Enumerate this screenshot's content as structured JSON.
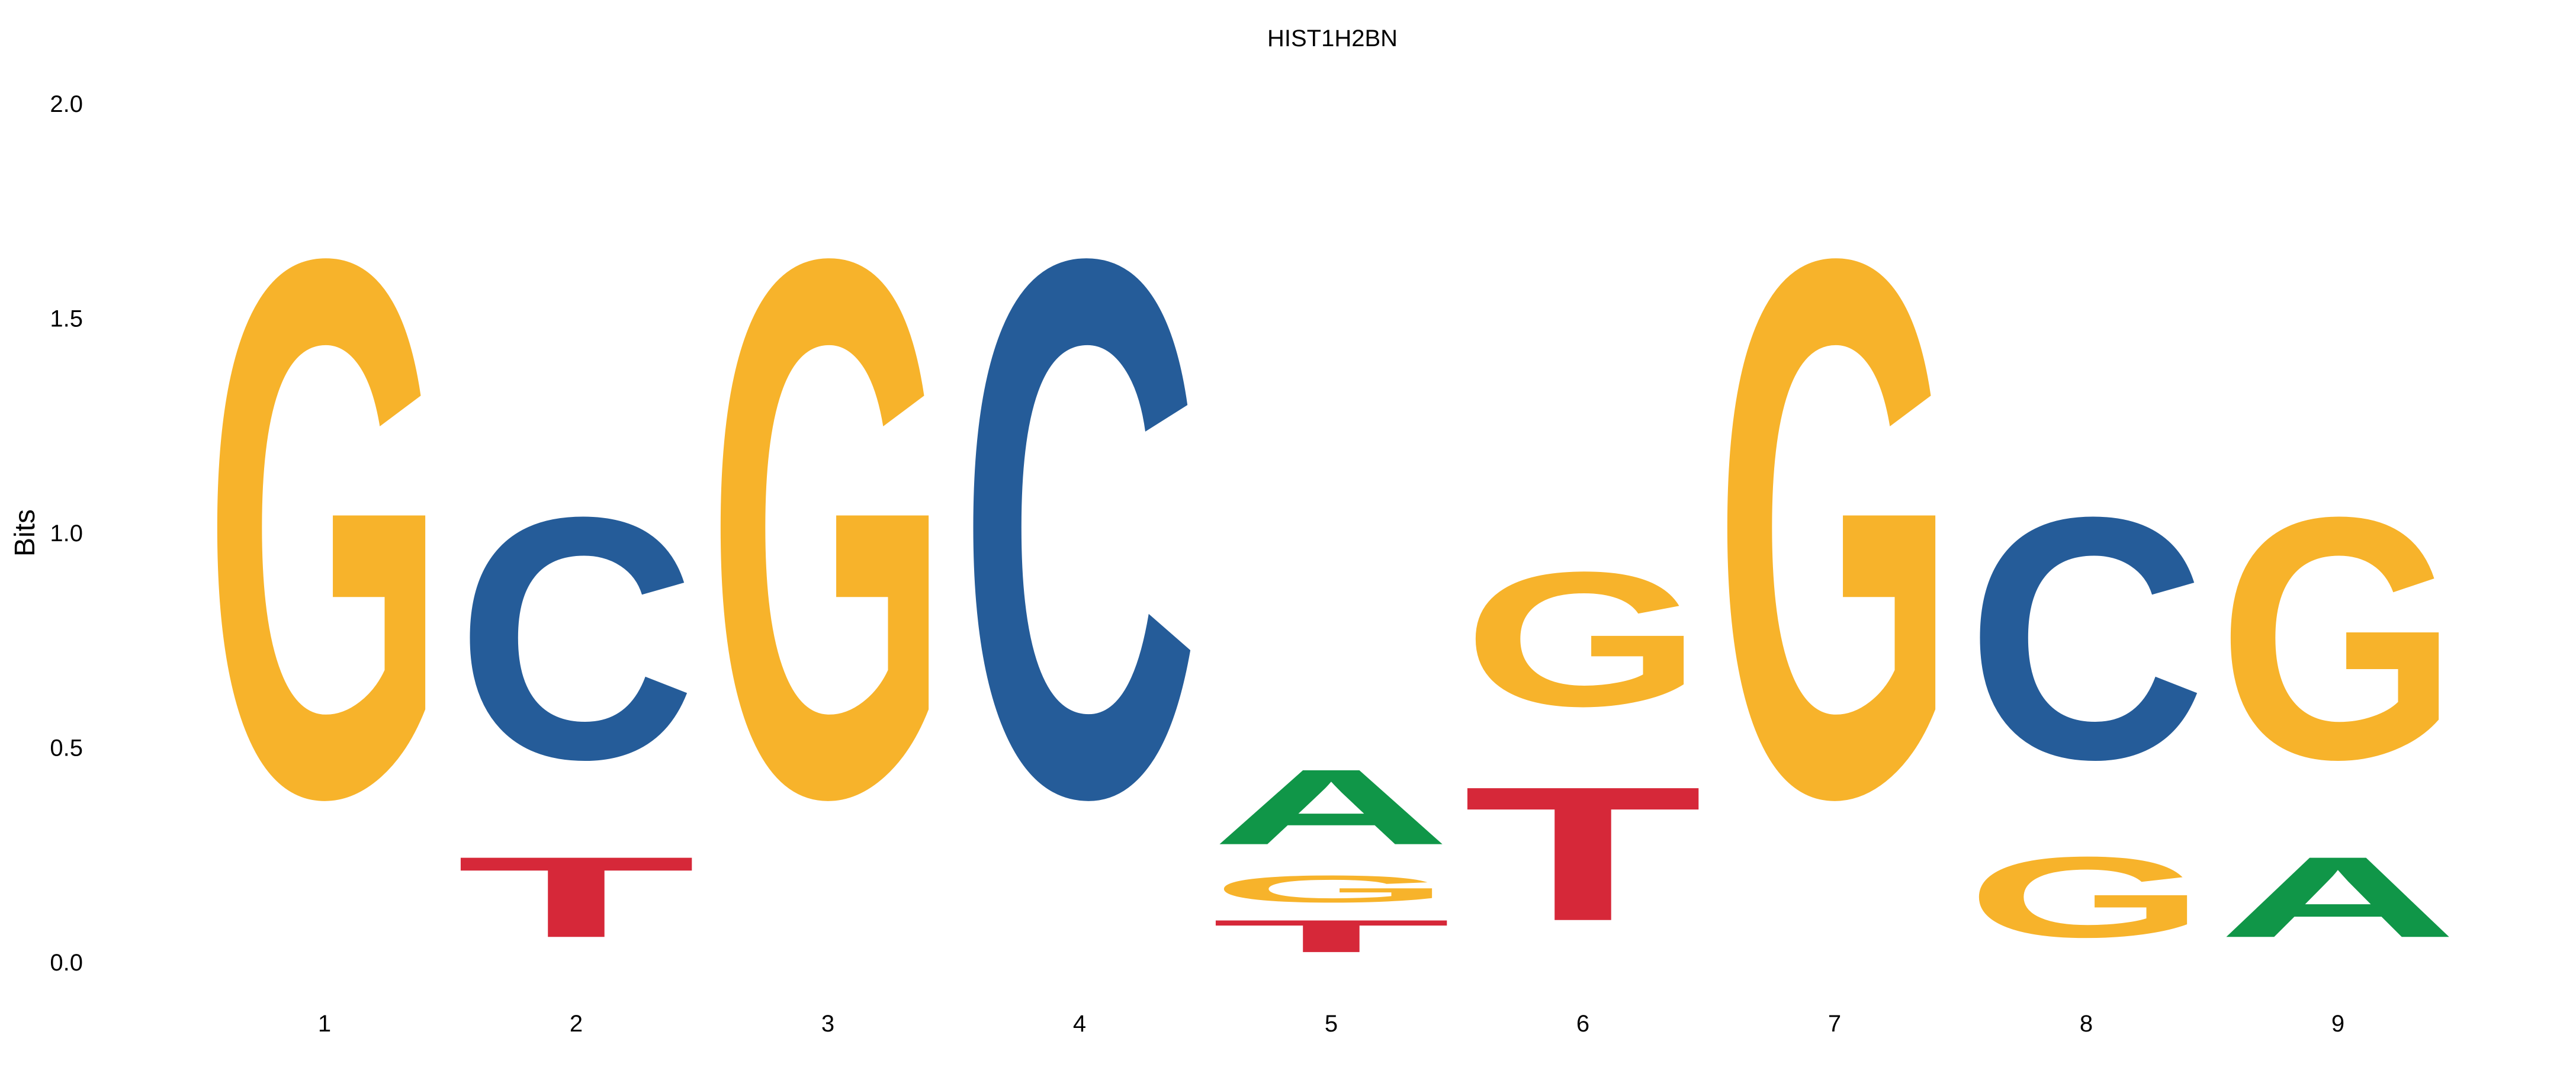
{
  "chart_data": {
    "type": "sequence-logo",
    "title": "HIST1H2BN",
    "ylabel": "Bits",
    "xlabel": "",
    "ylim": [
      0,
      2.0
    ],
    "yticks": [
      "0.0",
      "0.5",
      "1.0",
      "1.5",
      "2.0"
    ],
    "ytick_values": [
      0,
      0.5,
      1.0,
      1.5,
      2.0
    ],
    "positions": [
      {
        "label": "1",
        "stack": [
          {
            "letter": "G",
            "bits": 2.0
          }
        ]
      },
      {
        "label": "2",
        "stack": [
          {
            "letter": "T",
            "bits": 0.3
          },
          {
            "letter": "C",
            "bits": 0.9
          }
        ]
      },
      {
        "label": "3",
        "stack": [
          {
            "letter": "G",
            "bits": 2.0
          }
        ]
      },
      {
        "label": "4",
        "stack": [
          {
            "letter": "C",
            "bits": 2.0
          }
        ]
      },
      {
        "label": "5",
        "stack": [
          {
            "letter": "T",
            "bits": 0.12
          },
          {
            "letter": "G",
            "bits": 0.1
          },
          {
            "letter": "A",
            "bits": 0.28
          }
        ]
      },
      {
        "label": "6",
        "stack": [
          {
            "letter": "T",
            "bits": 0.5
          },
          {
            "letter": "G",
            "bits": 0.5
          }
        ]
      },
      {
        "label": "7",
        "stack": [
          {
            "letter": "G",
            "bits": 2.0
          }
        ]
      },
      {
        "label": "8",
        "stack": [
          {
            "letter": "G",
            "bits": 0.3
          },
          {
            "letter": "C",
            "bits": 0.9
          }
        ]
      },
      {
        "label": "9",
        "stack": [
          {
            "letter": "A",
            "bits": 0.3
          },
          {
            "letter": "G",
            "bits": 0.9
          }
        ]
      }
    ],
    "colors": {
      "A": "#109648",
      "C": "#255C99",
      "G": "#F7B32B",
      "T": "#D62839"
    }
  }
}
